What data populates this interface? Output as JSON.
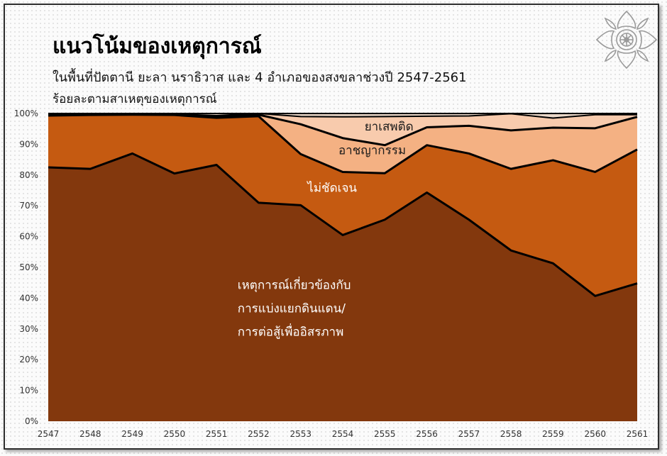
{
  "title": "แนวโน้มของเหตุการณ์",
  "subtitle": "ในพื้นที่ปัตตานี ยะลา นราธิวาส และ 4 อำเภอของสงขลาช่วงปี 2547-2561",
  "unit_label": "ร้อยละตามสาเหตุของเหตุการณ์",
  "logo_icon": "thai-emblem-icon",
  "colors": {
    "separatist": "#83380d",
    "unclear": "#c55a11",
    "crime": "#f4b183",
    "drugs": "#f8cbad",
    "top": "#ead7c8",
    "boundary": "#000000"
  },
  "chart_data": {
    "type": "area",
    "stacked": true,
    "x": [
      2547,
      2548,
      2549,
      2550,
      2551,
      2552,
      2553,
      2554,
      2555,
      2556,
      2557,
      2558,
      2559,
      2560,
      2561
    ],
    "ylim": [
      0,
      100
    ],
    "yticks": [
      "0%",
      "10%",
      "20%",
      "30%",
      "40%",
      "50%",
      "60%",
      "70%",
      "80%",
      "90%",
      "100%"
    ],
    "series": [
      {
        "name": "เหตุการณ์เกี่ยวข้องกับ การแบ่งแยกดินแดน/ การต่อสู้เพื่ออิสรภาพ",
        "label_lines": [
          "เหตุการณ์เกี่ยวข้องกับ",
          "การแบ่งแยกดินแดน/",
          "การต่อสู้เพื่ออิสรภาพ"
        ],
        "cumulative": [
          82.5,
          82,
          87,
          80.5,
          83.3,
          71,
          70.2,
          60.5,
          65.5,
          74.3,
          65.5,
          55.5,
          51.3,
          40.7,
          44.8
        ]
      },
      {
        "name": "ไม่ชัดเจน",
        "label_lines": [
          "ไม่ชัดเจน"
        ],
        "cumulative": [
          99.3,
          99.5,
          99.6,
          99.5,
          98.6,
          99.1,
          86.8,
          81,
          80.6,
          89.7,
          87,
          82,
          84.8,
          81,
          88.3
        ]
      },
      {
        "name": "อาชญากรรม",
        "label_lines": [
          "อาชญากรรม"
        ],
        "cumulative": [
          99.5,
          99.7,
          99.8,
          99.6,
          98.9,
          99.6,
          96.5,
          92,
          89.7,
          95.5,
          96,
          94.5,
          95.4,
          95.2,
          98.9
        ]
      },
      {
        "name": "ยาเสพติด",
        "label_lines": [
          "ยาเสพติด"
        ],
        "cumulative": [
          99.7,
          99.8,
          99.9,
          99.8,
          99.3,
          100,
          99,
          98.9,
          99,
          99.1,
          99.2,
          99.9,
          98.5,
          99.6,
          99.6
        ]
      }
    ]
  }
}
